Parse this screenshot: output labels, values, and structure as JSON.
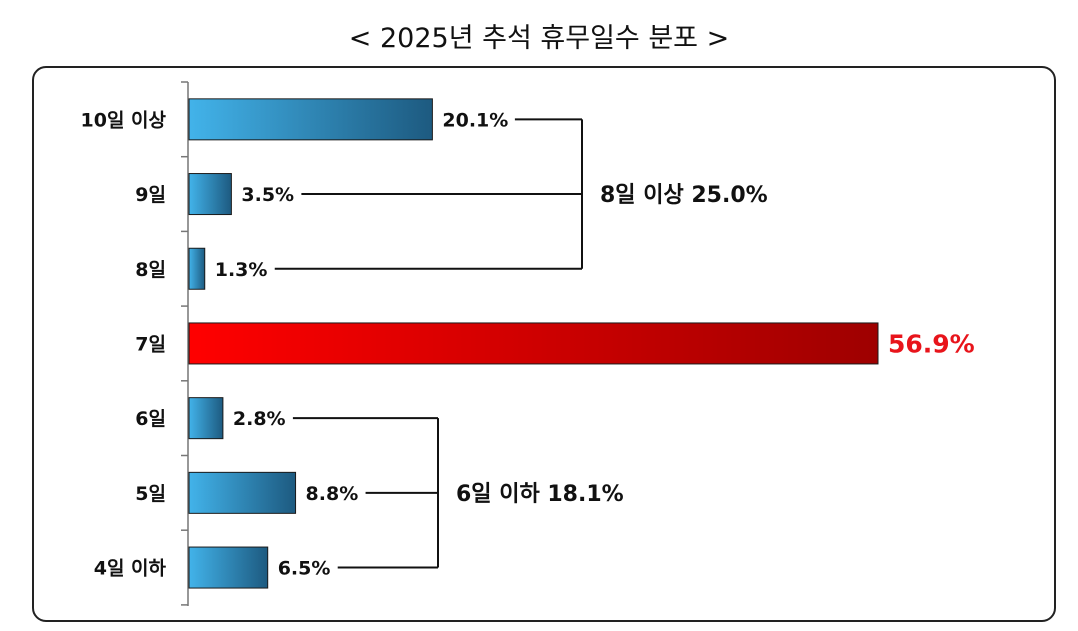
{
  "chart_data": {
    "type": "bar",
    "orientation": "horizontal",
    "title": "< 2025년 추석 휴무일수 분포 >",
    "categories": [
      "10일 이상",
      "9일",
      "8일",
      "7일",
      "6일",
      "5일",
      "4일 이하"
    ],
    "values": [
      20.1,
      3.5,
      1.3,
      56.9,
      2.8,
      8.8,
      6.5
    ],
    "value_labels": [
      "20.1%",
      "3.5%",
      "1.3%",
      "56.9%",
      "2.8%",
      "8.8%",
      "6.5%"
    ],
    "highlight_category": "7일",
    "xlim": [
      0,
      60
    ],
    "grid": false,
    "groups": [
      {
        "label": "8일 이상 25.0%",
        "members": [
          "10일 이상",
          "9일",
          "8일"
        ]
      },
      {
        "label": "6일 이하 18.1%",
        "members": [
          "6일",
          "5일",
          "4일 이하"
        ]
      }
    ],
    "colors": {
      "bar_light": "#42b3ea",
      "bar_dark": "#1d5a80",
      "highlight_light": "#ff0000",
      "highlight_dark": "#9e0000",
      "highlight_text": "#e8141b"
    }
  }
}
